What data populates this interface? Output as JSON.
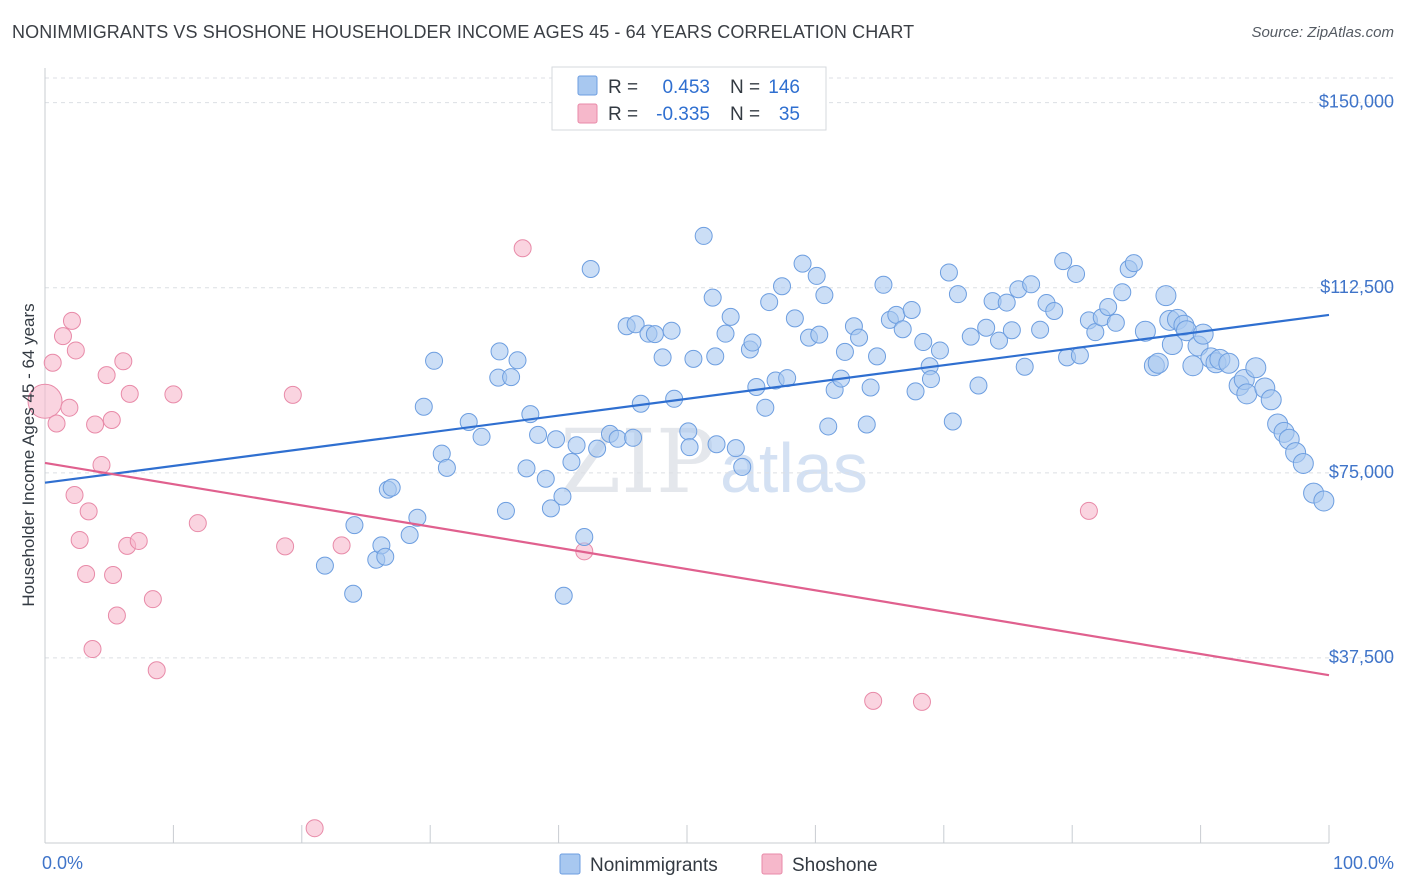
{
  "header": {
    "title": "NONIMMIGRANTS VS SHOSHONE HOUSEHOLDER INCOME AGES 45 - 64 YEARS CORRELATION CHART",
    "source": "Source: ZipAtlas.com"
  },
  "watermark": {
    "zip": "ZIP",
    "atlas": "atlas"
  },
  "legend": {
    "rows": [
      {
        "r_label": "R =",
        "r_value": "0.453",
        "n_label": "N =",
        "n_value": "146",
        "color": "#a8c8f0",
        "stroke": "#6d9ee0"
      },
      {
        "r_label": "R =",
        "r_value": "-0.335",
        "n_label": "N =",
        "n_value": "35",
        "color": "#f6b8cb",
        "stroke": "#e88aa8"
      }
    ]
  },
  "bottom_legend": [
    {
      "label": "Nonimmigrants",
      "color": "#a8c8f0",
      "stroke": "#6d9ee0"
    },
    {
      "label": "Shoshone",
      "color": "#f6b8cb",
      "stroke": "#e88aa8"
    }
  ],
  "chart_data": {
    "type": "scatter",
    "title": "NONIMMIGRANTS VS SHOSHONE HOUSEHOLDER INCOME AGES 45 - 64 YEARS CORRELATION CHART",
    "xlabel": "",
    "ylabel": "Householder Income Ages 45 - 64 years",
    "xlim": [
      0,
      100
    ],
    "ylim": [
      0,
      155000
    ],
    "x_tick_labels": [
      "0.0%",
      "100.0%"
    ],
    "y_ticks": [
      37500,
      75000,
      112500,
      150000
    ],
    "y_tick_labels": [
      "$37,500",
      "$75,000",
      "$112,500",
      "$150,000"
    ],
    "grid": "horizontal dashed",
    "colors": {
      "blue_fill": "#a8c8f0",
      "blue_stroke": "#6d9ee0",
      "blue_line": "#2f6fd0",
      "pink_fill": "#f6b8cb",
      "pink_stroke": "#e88aa8",
      "pink_line": "#e0608e"
    },
    "series": [
      {
        "name": "Nonimmigrants",
        "trend": {
          "x": [
            0,
            100
          ],
          "y": [
            73000,
            107000
          ]
        },
        "points": [
          [
            21.8,
            56200
          ],
          [
            24.1,
            64400
          ],
          [
            25.8,
            57400
          ],
          [
            26.2,
            60300
          ],
          [
            26.5,
            58000
          ],
          [
            24.0,
            50500
          ],
          [
            26.7,
            71600
          ],
          [
            27.0,
            72000
          ],
          [
            28.4,
            62400
          ],
          [
            29.0,
            65900
          ],
          [
            29.5,
            88400
          ],
          [
            30.3,
            97700
          ],
          [
            30.9,
            78900
          ],
          [
            31.3,
            76000
          ],
          [
            33.0,
            85300
          ],
          [
            34.0,
            82300
          ],
          [
            35.3,
            94300
          ],
          [
            35.4,
            99600
          ],
          [
            35.9,
            67300
          ],
          [
            36.3,
            94400
          ],
          [
            36.8,
            97800
          ],
          [
            37.5,
            75900
          ],
          [
            37.8,
            86900
          ],
          [
            38.4,
            82700
          ],
          [
            39.0,
            73800
          ],
          [
            39.4,
            67800
          ],
          [
            39.8,
            81800
          ],
          [
            40.3,
            70200
          ],
          [
            40.4,
            50100
          ],
          [
            41.0,
            77200
          ],
          [
            41.4,
            80600
          ],
          [
            42.0,
            62000
          ],
          [
            42.5,
            116300
          ],
          [
            43.0,
            79900
          ],
          [
            44.0,
            82900
          ],
          [
            44.6,
            81900
          ],
          [
            45.3,
            104700
          ],
          [
            45.8,
            82100
          ],
          [
            46.0,
            105100
          ],
          [
            46.4,
            89000
          ],
          [
            47.0,
            103200
          ],
          [
            47.5,
            103100
          ],
          [
            48.1,
            98400
          ],
          [
            48.8,
            103800
          ],
          [
            49.0,
            90000
          ],
          [
            50.1,
            83400
          ],
          [
            50.5,
            98100
          ],
          [
            51.3,
            123000
          ],
          [
            52.0,
            110500
          ],
          [
            52.2,
            98600
          ],
          [
            53.0,
            103200
          ],
          [
            53.4,
            106600
          ],
          [
            53.8,
            80000
          ],
          [
            54.3,
            76200
          ],
          [
            54.9,
            100000
          ],
          [
            55.4,
            92400
          ],
          [
            56.1,
            88200
          ],
          [
            56.4,
            109600
          ],
          [
            56.9,
            93700
          ],
          [
            57.4,
            112800
          ],
          [
            57.8,
            94200
          ],
          [
            58.4,
            106300
          ],
          [
            59.0,
            117400
          ],
          [
            59.5,
            102400
          ],
          [
            60.1,
            114900
          ],
          [
            60.7,
            111000
          ],
          [
            61.0,
            84400
          ],
          [
            61.5,
            91800
          ],
          [
            62.0,
            94100
          ],
          [
            62.3,
            99500
          ],
          [
            63.0,
            104700
          ],
          [
            63.4,
            102400
          ],
          [
            64.0,
            84800
          ],
          [
            64.3,
            92300
          ],
          [
            64.8,
            98600
          ],
          [
            65.3,
            113100
          ],
          [
            65.8,
            106000
          ],
          [
            66.3,
            107000
          ],
          [
            66.8,
            104100
          ],
          [
            67.5,
            108000
          ],
          [
            67.8,
            91500
          ],
          [
            68.4,
            101500
          ],
          [
            68.9,
            96600
          ],
          [
            69.0,
            94000
          ],
          [
            69.7,
            99800
          ],
          [
            70.4,
            115600
          ],
          [
            70.7,
            85400
          ],
          [
            71.1,
            111200
          ],
          [
            72.1,
            102600
          ],
          [
            72.7,
            92700
          ],
          [
            73.3,
            104400
          ],
          [
            73.8,
            109800
          ],
          [
            74.3,
            101800
          ],
          [
            74.9,
            109500
          ],
          [
            75.3,
            103900
          ],
          [
            75.8,
            112200
          ],
          [
            76.3,
            96500
          ],
          [
            76.8,
            113200
          ],
          [
            77.5,
            104000
          ],
          [
            78.0,
            109400
          ],
          [
            78.6,
            107800
          ],
          [
            79.3,
            117900
          ],
          [
            79.6,
            98400
          ],
          [
            80.3,
            115300
          ],
          [
            80.6,
            98800
          ],
          [
            81.3,
            105900
          ],
          [
            81.8,
            103500
          ],
          [
            82.3,
            106500
          ],
          [
            82.8,
            108600
          ],
          [
            83.4,
            105400
          ],
          [
            83.9,
            111600
          ],
          [
            84.4,
            116300
          ],
          [
            84.8,
            117500
          ],
          [
            85.7,
            103700
          ],
          [
            86.4,
            96700
          ],
          [
            86.7,
            97200
          ],
          [
            87.3,
            110900
          ],
          [
            87.6,
            105900
          ],
          [
            87.8,
            101000
          ],
          [
            88.2,
            106100
          ],
          [
            88.7,
            104900
          ],
          [
            88.9,
            103800
          ],
          [
            89.4,
            96700
          ],
          [
            89.8,
            100700
          ],
          [
            90.2,
            103100
          ],
          [
            90.8,
            98300
          ],
          [
            91.2,
            97300
          ],
          [
            91.5,
            98000
          ],
          [
            92.2,
            97200
          ],
          [
            93.0,
            92700
          ],
          [
            93.4,
            93900
          ],
          [
            93.6,
            91000
          ],
          [
            94.3,
            96300
          ],
          [
            95.0,
            92200
          ],
          [
            95.5,
            89800
          ],
          [
            96.0,
            84900
          ],
          [
            96.5,
            83200
          ],
          [
            96.9,
            81800
          ],
          [
            97.4,
            79100
          ],
          [
            98.0,
            76900
          ],
          [
            98.8,
            70900
          ],
          [
            99.6,
            69300
          ],
          [
            52.3,
            80800
          ],
          [
            50.2,
            80200
          ],
          [
            60.3,
            103000
          ],
          [
            55.1,
            101400
          ]
        ]
      },
      {
        "name": "Shoshone",
        "trend": {
          "x": [
            0,
            100
          ],
          "y": [
            77000,
            34000
          ]
        },
        "points": [
          [
            0.0,
            89500
          ],
          [
            0.6,
            97300
          ],
          [
            0.9,
            85000
          ],
          [
            1.4,
            102700
          ],
          [
            1.9,
            88200
          ],
          [
            2.1,
            105800
          ],
          [
            2.3,
            70500
          ],
          [
            2.4,
            99800
          ],
          [
            2.7,
            61400
          ],
          [
            3.2,
            54500
          ],
          [
            3.4,
            67200
          ],
          [
            3.7,
            39300
          ],
          [
            3.9,
            84800
          ],
          [
            4.4,
            76600
          ],
          [
            4.8,
            94800
          ],
          [
            5.2,
            85700
          ],
          [
            5.3,
            54300
          ],
          [
            5.6,
            46100
          ],
          [
            6.1,
            97600
          ],
          [
            6.4,
            60200
          ],
          [
            6.6,
            91000
          ],
          [
            7.3,
            61200
          ],
          [
            8.4,
            49400
          ],
          [
            8.7,
            35000
          ],
          [
            10.0,
            90900
          ],
          [
            11.9,
            64800
          ],
          [
            18.7,
            60100
          ],
          [
            19.3,
            90800
          ],
          [
            21.0,
            3000
          ],
          [
            23.1,
            60300
          ],
          [
            37.2,
            120500
          ],
          [
            42.0,
            59100
          ],
          [
            64.5,
            28800
          ],
          [
            68.3,
            28600
          ],
          [
            81.3,
            67300
          ]
        ]
      }
    ]
  }
}
